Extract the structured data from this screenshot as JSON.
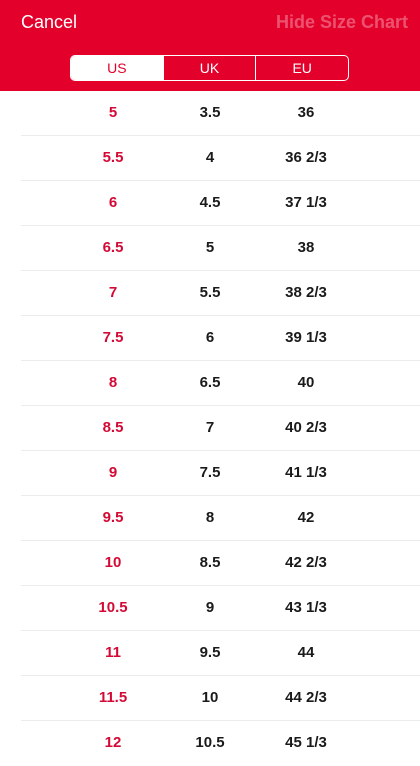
{
  "header": {
    "cancel_label": "Cancel",
    "hide_label": "Hide Size Chart",
    "tabs": [
      "US",
      "UK",
      "EU"
    ],
    "selected_tab": "US"
  },
  "sizes": [
    {
      "us": "5",
      "uk": "3.5",
      "eu": "36"
    },
    {
      "us": "5.5",
      "uk": "4",
      "eu": "36 2/3"
    },
    {
      "us": "6",
      "uk": "4.5",
      "eu": "37 1/3"
    },
    {
      "us": "6.5",
      "uk": "5",
      "eu": "38"
    },
    {
      "us": "7",
      "uk": "5.5",
      "eu": "38 2/3"
    },
    {
      "us": "7.5",
      "uk": "6",
      "eu": "39 1/3"
    },
    {
      "us": "8",
      "uk": "6.5",
      "eu": "40"
    },
    {
      "us": "8.5",
      "uk": "7",
      "eu": "40 2/3"
    },
    {
      "us": "9",
      "uk": "7.5",
      "eu": "41 1/3"
    },
    {
      "us": "9.5",
      "uk": "8",
      "eu": "42"
    },
    {
      "us": "10",
      "uk": "8.5",
      "eu": "42 2/3"
    },
    {
      "us": "10.5",
      "uk": "9",
      "eu": "43 1/3"
    },
    {
      "us": "11",
      "uk": "9.5",
      "eu": "44"
    },
    {
      "us": "11.5",
      "uk": "10",
      "eu": "44 2/3"
    },
    {
      "us": "12",
      "uk": "10.5",
      "eu": "45 1/3"
    }
  ],
  "colors": {
    "brand_red": "#e3002b",
    "us_text": "#d40a36"
  }
}
